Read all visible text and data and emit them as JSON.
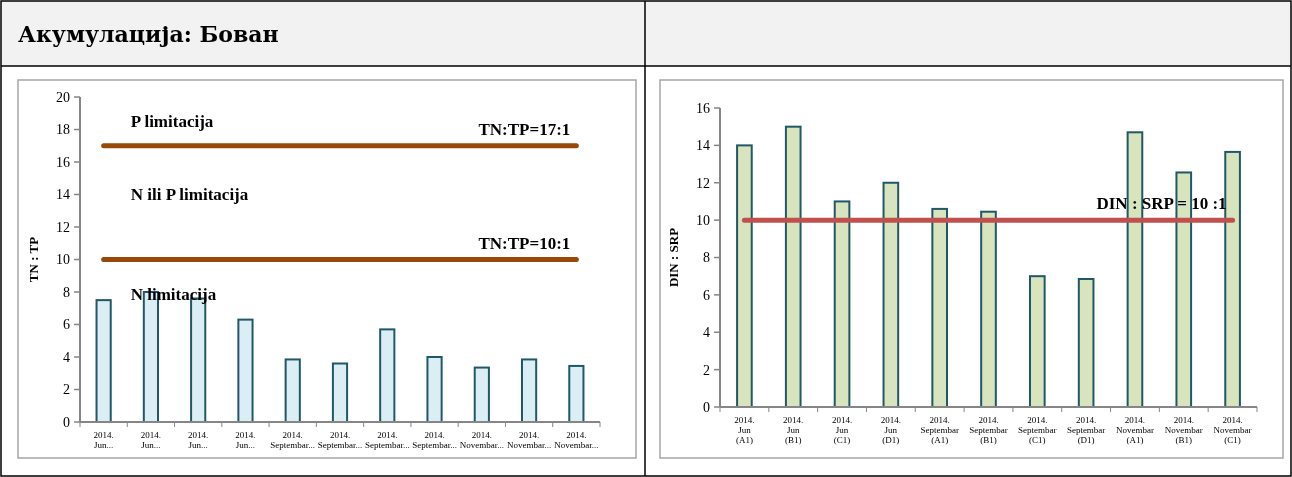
{
  "chart_data": [
    {
      "type": "bar",
      "title": "Акумулација: Бован",
      "ylabel": "TN : TP",
      "categories": [
        "2014.\nJun...",
        "2014.\nJun...",
        "2014.\nJun...",
        "2014.\nJun...",
        "2014.\nSeptembar...",
        "2014.\nSeptembar...",
        "2014.\nSeptembar...",
        "2014.\nSeptembar...",
        "2014.\nNovembar...",
        "2014.\nNovembar...",
        "2014.\nNovembar..."
      ],
      "values": [
        7.5,
        8.0,
        7.6,
        6.3,
        3.85,
        3.6,
        5.7,
        4.0,
        3.35,
        3.85,
        3.45
      ],
      "color": "#daeef3",
      "ylim": [
        0,
        20
      ],
      "yticks": [
        0,
        2,
        4,
        6,
        8,
        10,
        12,
        14,
        16,
        18,
        20
      ],
      "grid": false,
      "ref_lines": [
        {
          "axis": "y",
          "value": 17,
          "label": "TN:TP=17:1",
          "color": "#984807"
        },
        {
          "axis": "y",
          "value": 10,
          "label": "TN:TP=10:1",
          "color": "#984807"
        }
      ],
      "annotations": [
        "P limitacija",
        "N ili P limitacija",
        "N limitacija"
      ]
    },
    {
      "type": "bar",
      "ylabel": "DIN : SRP",
      "categories": [
        "2014.\nJun\n(A1)",
        "2014.\nJun\n(B1)",
        "2014.\nJun\n(C1)",
        "2014.\nJun\n(D1)",
        "2014.\nSeptembar\n(A1)",
        "2014.\nSeptembar\n(B1)",
        "2014.\nSeptembar\n(C1)",
        "2014.\nSeptembar\n(D1)",
        "2014.\nNovembar\n(A1)",
        "2014.\nNovembar\n(B1)",
        "2014.\nNovembar\n(C1)"
      ],
      "values": [
        14,
        15,
        11,
        12,
        10.6,
        10.45,
        7.0,
        6.85,
        14.7,
        12.55,
        13.65
      ],
      "color": "#d7e4bd",
      "ylim": [
        0,
        16
      ],
      "yticks": [
        0,
        2,
        4,
        6,
        8,
        10,
        12,
        14,
        16
      ],
      "grid": false,
      "ref_lines": [
        {
          "axis": "y",
          "value": 10,
          "label": "DIN : SRP =  10 :1",
          "color": "#c0504d"
        }
      ]
    }
  ]
}
